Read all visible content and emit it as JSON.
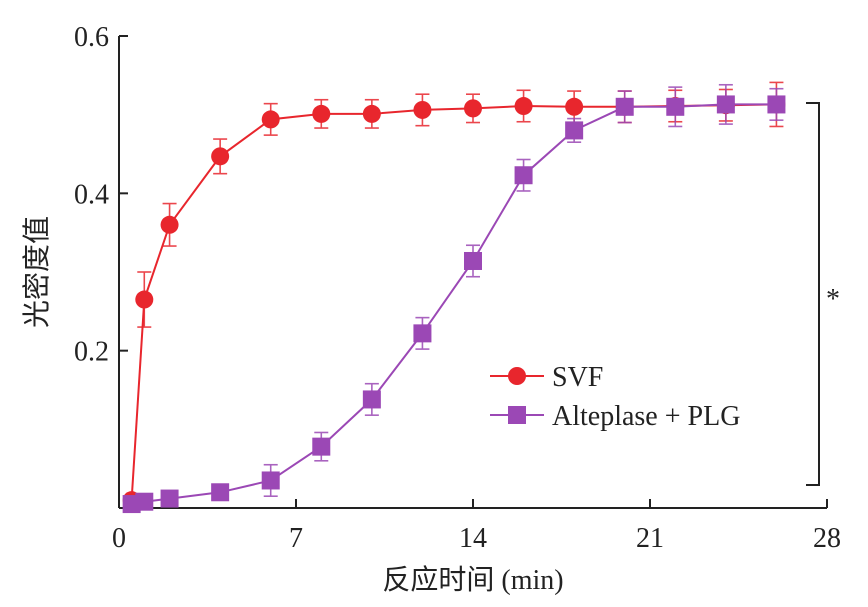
{
  "chart_data": {
    "type": "line",
    "xlabel": "反应时间 (min)",
    "ylabel": "光密度值",
    "xlim": [
      0,
      28
    ],
    "ylim": [
      0,
      0.6
    ],
    "x_ticks": [
      0,
      7,
      14,
      21,
      28
    ],
    "x_tick_labels": [
      "0",
      "7",
      "14",
      "21",
      "28"
    ],
    "y_ticks": [
      0.2,
      0.4,
      0.6
    ],
    "y_tick_labels": [
      "0.2",
      "0.4",
      "0.6"
    ],
    "grid": false,
    "legend_position": "center-right",
    "significance_marker": "*",
    "series": [
      {
        "name": "SVF",
        "color": "#e8262d",
        "marker": "circle",
        "x": [
          0.5,
          1,
          2,
          4,
          6,
          8,
          10,
          12,
          14,
          16,
          18,
          20,
          22,
          24,
          26
        ],
        "y": [
          0.01,
          0.265,
          0.36,
          0.447,
          0.494,
          0.501,
          0.501,
          0.506,
          0.508,
          0.511,
          0.51,
          0.51,
          0.511,
          0.512,
          0.513
        ],
        "err": [
          0.005,
          0.035,
          0.027,
          0.022,
          0.02,
          0.018,
          0.018,
          0.02,
          0.018,
          0.02,
          0.02,
          0.02,
          0.02,
          0.02,
          0.028
        ]
      },
      {
        "name": "Alteplase + PLG",
        "color": "#9b48b5",
        "marker": "square",
        "x": [
          0.5,
          1,
          2,
          4,
          6,
          8,
          10,
          12,
          14,
          16,
          18,
          20,
          22,
          24,
          26
        ],
        "y": [
          0.005,
          0.008,
          0.012,
          0.02,
          0.035,
          0.078,
          0.138,
          0.222,
          0.314,
          0.423,
          0.48,
          0.51,
          0.51,
          0.513,
          0.513
        ],
        "err": [
          0.004,
          0.005,
          0.006,
          0.008,
          0.02,
          0.018,
          0.02,
          0.02,
          0.02,
          0.02,
          0.015,
          0.02,
          0.025,
          0.025,
          0.02
        ]
      }
    ]
  }
}
